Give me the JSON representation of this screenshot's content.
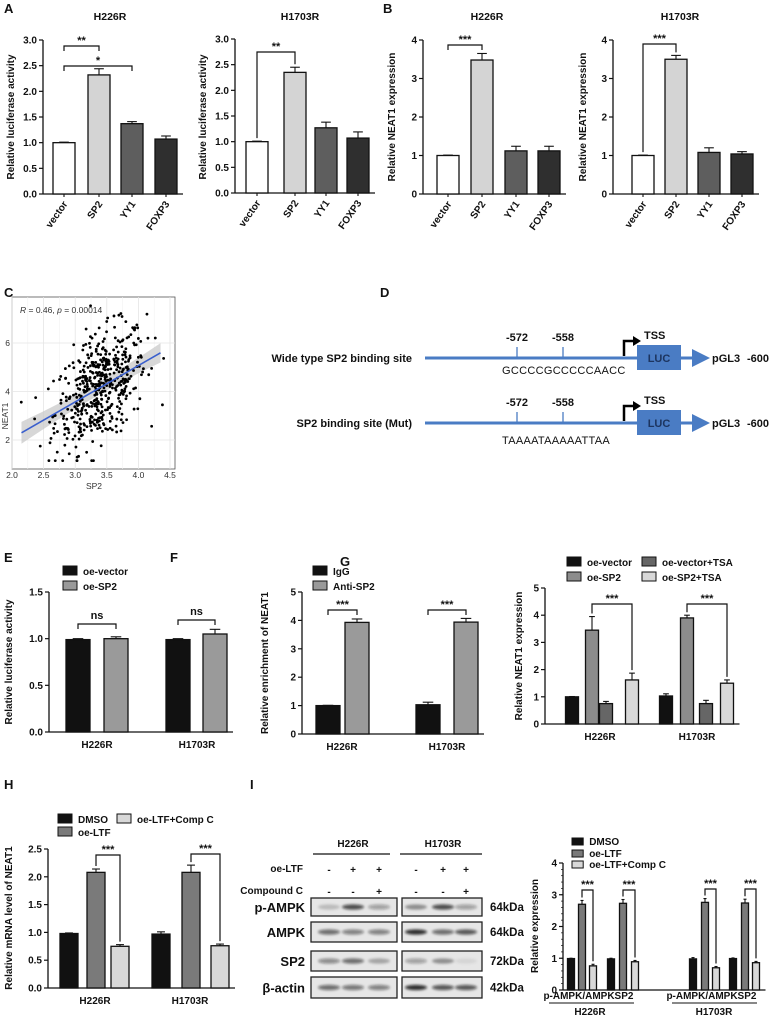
{
  "panels": [
    "A",
    "B",
    "C",
    "D",
    "E",
    "F",
    "G",
    "H",
    "I"
  ],
  "chart_data": [
    {
      "id": "A1",
      "type": "bar",
      "title": "H226R",
      "ylabel": "Relative luciferase activity",
      "xlabel": "",
      "categories": [
        "vector",
        "SP2",
        "YY1",
        "FOXP3"
      ],
      "ylim": [
        0,
        3
      ],
      "yticks": [
        0,
        0.5,
        1,
        1.5,
        2,
        2.5,
        3
      ],
      "ytick_labels": [
        "0.0",
        "0.5",
        "1.0",
        "1.5",
        "2.0",
        "2.5",
        "3.0"
      ],
      "series": [
        {
          "name": "",
          "values": [
            1.0,
            2.32,
            1.37,
            1.07
          ],
          "errors": [
            0.01,
            0.12,
            0.04,
            0.06
          ],
          "colors": [
            "#ffffff",
            "#d4d4d4",
            "#5e5e5e",
            "#2f2f2f"
          ]
        }
      ],
      "annotations": [
        {
          "a": [
            0,
            0
          ],
          "b": [
            0,
            1
          ],
          "label": "**"
        },
        {
          "a": [
            0,
            0
          ],
          "b": [
            0,
            2
          ],
          "label": "*"
        }
      ]
    },
    {
      "id": "A2",
      "type": "bar",
      "title": "H1703R",
      "ylabel": "Relative luciferase activity",
      "xlabel": "",
      "categories": [
        "vector",
        "SP2",
        "YY1",
        "FOXP3"
      ],
      "ylim": [
        0,
        3
      ],
      "yticks": [
        0,
        0.5,
        1,
        1.5,
        2,
        2.5,
        3
      ],
      "ytick_labels": [
        "0.0",
        "0.5",
        "1.0",
        "1.5",
        "2.0",
        "2.5",
        "3.0"
      ],
      "series": [
        {
          "name": "",
          "values": [
            1.0,
            2.35,
            1.27,
            1.07
          ],
          "errors": [
            0.01,
            0.1,
            0.11,
            0.12
          ],
          "colors": [
            "#ffffff",
            "#d4d4d4",
            "#5e5e5e",
            "#2f2f2f"
          ]
        }
      ],
      "annotations": [
        {
          "a": [
            0,
            0
          ],
          "b": [
            0,
            1
          ],
          "label": "**"
        }
      ]
    },
    {
      "id": "B1",
      "type": "bar",
      "title": "H226R",
      "ylabel": "Relative NEAT1 expression",
      "xlabel": "",
      "categories": [
        "vector",
        "SP2",
        "YY1",
        "FOXP3"
      ],
      "ylim": [
        0,
        4
      ],
      "yticks": [
        0,
        1,
        2,
        3,
        4
      ],
      "ytick_labels": [
        "0",
        "1",
        "2",
        "3",
        "4"
      ],
      "series": [
        {
          "name": "",
          "values": [
            1.0,
            3.48,
            1.12,
            1.12
          ],
          "errors": [
            0.01,
            0.17,
            0.12,
            0.12
          ],
          "colors": [
            "#ffffff",
            "#d4d4d4",
            "#5e5e5e",
            "#2f2f2f"
          ]
        }
      ],
      "annotations": [
        {
          "a": [
            0,
            0
          ],
          "b": [
            0,
            1
          ],
          "label": "***"
        }
      ]
    },
    {
      "id": "B2",
      "type": "bar",
      "title": "H1703R",
      "ylabel": "Relative NEAT1 expression",
      "xlabel": "",
      "categories": [
        "vector",
        "SP2",
        "YY1",
        "FOXP3"
      ],
      "ylim": [
        0,
        4
      ],
      "yticks": [
        0,
        1,
        2,
        3,
        4
      ],
      "ytick_labels": [
        "0",
        "1",
        "2",
        "3",
        "4"
      ],
      "series": [
        {
          "name": "",
          "values": [
            1.0,
            3.5,
            1.08,
            1.04
          ],
          "errors": [
            0.01,
            0.1,
            0.12,
            0.06
          ],
          "colors": [
            "#ffffff",
            "#d4d4d4",
            "#5e5e5e",
            "#2f2f2f"
          ]
        }
      ],
      "annotations": [
        {
          "a": [
            0,
            0
          ],
          "b": [
            0,
            1
          ],
          "label": "***"
        }
      ]
    },
    {
      "id": "C",
      "type": "scatter",
      "title": "",
      "xlabel": "SP2",
      "ylabel": "NEAT1",
      "annotation": "R = 0.46, p = 0.00014",
      "stat_r": "R",
      "stat_r_val": " = 0.46, ",
      "stat_p": "p",
      "stat_p_val": " = 0.00014",
      "xlim": [
        2.0,
        4.5
      ],
      "ylim": [
        1.0,
        7.8
      ],
      "xticks": [
        2.0,
        2.5,
        3.0,
        3.5,
        4.0,
        4.5
      ],
      "xtick_labels": [
        "2.0",
        "2.5",
        "3.0",
        "3.5",
        "4.0",
        "4.5"
      ],
      "yticks": [
        2,
        4,
        6
      ],
      "ytick_labels": [
        "2",
        "4",
        "6"
      ],
      "n_points_approx": 500,
      "x_mean": 3.4,
      "x_sd": 0.36,
      "fit": {
        "slope": 1.5,
        "intercept": -0.93,
        "x_range": [
          2.15,
          4.35
        ]
      },
      "residual_sd": 1.1,
      "grid": true,
      "line_color": "#3a5fcd"
    },
    {
      "id": "E",
      "type": "bar",
      "title": "",
      "ylabel": "Relative luciferase activity",
      "xlabel": "",
      "categories": [
        "H226R",
        "H1703R"
      ],
      "ylim": [
        0,
        1.5
      ],
      "yticks": [
        0,
        0.5,
        1,
        1.5
      ],
      "ytick_labels": [
        "0.0",
        "0.5",
        "1.0",
        "1.5"
      ],
      "series": [
        {
          "name": "oe-vector",
          "values": [
            0.99,
            0.99
          ],
          "errors": [
            0.01,
            0.01
          ],
          "color": "#111111"
        },
        {
          "name": "oe-SP2",
          "values": [
            1.0,
            1.05
          ],
          "errors": [
            0.02,
            0.05
          ],
          "color": "#9a9a9a"
        }
      ],
      "legend": "top-left",
      "annotations": [
        {
          "a": [
            0,
            0
          ],
          "b": [
            1,
            0
          ],
          "label": "ns"
        },
        {
          "a": [
            0,
            1
          ],
          "b": [
            1,
            1
          ],
          "label": "ns"
        }
      ]
    },
    {
      "id": "F",
      "type": "bar",
      "title": "",
      "ylabel": "Relative enrichment of NEAT1",
      "xlabel": "",
      "categories": [
        "H226R",
        "H1703R"
      ],
      "ylim": [
        0,
        5
      ],
      "yticks": [
        0,
        1,
        2,
        3,
        4,
        5
      ],
      "ytick_labels": [
        "0",
        "1",
        "2",
        "3",
        "4",
        "5"
      ],
      "series": [
        {
          "name": "IgG",
          "values": [
            1.0,
            1.03
          ],
          "errors": [
            0.01,
            0.09
          ],
          "color": "#111111"
        },
        {
          "name": "Anti-SP2",
          "values": [
            3.93,
            3.94
          ],
          "errors": [
            0.12,
            0.13
          ],
          "color": "#9a9a9a"
        }
      ],
      "legend": "top-left",
      "annotations": [
        {
          "a": [
            0,
            0
          ],
          "b": [
            1,
            0
          ],
          "label": "***"
        },
        {
          "a": [
            0,
            1
          ],
          "b": [
            1,
            1
          ],
          "label": "***"
        }
      ]
    },
    {
      "id": "G",
      "type": "bar",
      "title": "",
      "ylabel": "Relative NEAT1 expression",
      "xlabel": "",
      "categories": [
        "H226R",
        "H1703R"
      ],
      "ylim": [
        0,
        5
      ],
      "yticks": [
        0,
        1,
        2,
        3,
        4,
        5
      ],
      "ytick_labels": [
        "0",
        "1",
        "2",
        "3",
        "4",
        "5"
      ],
      "series": [
        {
          "name": "oe-vector",
          "values": [
            1.0,
            1.03
          ],
          "errors": [
            0.01,
            0.08
          ],
          "color": "#111111"
        },
        {
          "name": "oe-SP2",
          "values": [
            3.45,
            3.9
          ],
          "errors": [
            0.5,
            0.1
          ],
          "color": "#8c8c8c"
        },
        {
          "name": "oe-vector+TSA",
          "values": [
            0.75,
            0.75
          ],
          "errors": [
            0.08,
            0.12
          ],
          "color": "#666666"
        },
        {
          "name": "oe-SP2+TSA",
          "values": [
            1.62,
            1.5
          ],
          "errors": [
            0.25,
            0.12
          ],
          "color": "#d8d8d8"
        }
      ],
      "legend": "top",
      "annotations": [
        {
          "a": [
            1,
            0
          ],
          "b": [
            3,
            0
          ],
          "label": "***"
        },
        {
          "a": [
            1,
            1
          ],
          "b": [
            3,
            1
          ],
          "label": "***"
        }
      ]
    },
    {
      "id": "H",
      "type": "bar",
      "title": "",
      "ylabel": "Relative mRNA level of NEAT1",
      "xlabel": "",
      "categories": [
        "H226R",
        "H1703R"
      ],
      "ylim": [
        0,
        2.5
      ],
      "yticks": [
        0,
        0.5,
        1,
        1.5,
        2,
        2.5
      ],
      "ytick_labels": [
        "0.0",
        "0.5",
        "1.0",
        "1.5",
        "2.0",
        "2.5"
      ],
      "series": [
        {
          "name": "DMSO",
          "values": [
            0.98,
            0.97
          ],
          "errors": [
            0.01,
            0.04
          ],
          "color": "#111111"
        },
        {
          "name": "oe-LTF",
          "values": [
            2.08,
            2.08
          ],
          "errors": [
            0.06,
            0.13
          ],
          "color": "#7a7a7a"
        },
        {
          "name": "oe-LTF+Comp C",
          "values": [
            0.75,
            0.76
          ],
          "errors": [
            0.03,
            0.03
          ],
          "color": "#d8d8d8"
        }
      ],
      "legend": "top",
      "annotations": [
        {
          "a": [
            1,
            0
          ],
          "b": [
            2,
            0
          ],
          "label": "***"
        },
        {
          "a": [
            1,
            1
          ],
          "b": [
            2,
            1
          ],
          "label": "***"
        }
      ]
    },
    {
      "id": "I2",
      "type": "bar",
      "title": "",
      "ylabel": "Relative expression",
      "xlabel": "",
      "categories": [
        "p-AMPK/AMPK",
        "SP2",
        "p-AMPK/AMPK",
        "SP2"
      ],
      "category_groups": [
        "H226R",
        "H1703R"
      ],
      "ylim": [
        0,
        4
      ],
      "yticks": [
        0,
        1,
        2,
        3,
        4
      ],
      "ytick_labels": [
        "0",
        "1",
        "2",
        "3",
        "4"
      ],
      "series": [
        {
          "name": "DMSO",
          "values": [
            0.99,
            0.98,
            0.98,
            0.99
          ],
          "errors": [
            0.01,
            0.02,
            0.04,
            0.02
          ],
          "color": "#111111"
        },
        {
          "name": "oe-LTF",
          "values": [
            2.7,
            2.73,
            2.76,
            2.74
          ],
          "errors": [
            0.12,
            0.12,
            0.12,
            0.12
          ],
          "color": "#7a7a7a"
        },
        {
          "name": "oe-LTF+Comp C",
          "values": [
            0.76,
            0.89,
            0.7,
            0.86
          ],
          "errors": [
            0.05,
            0.04,
            0.04,
            0.04
          ],
          "color": "#d8d8d8"
        }
      ],
      "legend": "top-left",
      "annotations": [
        {
          "a": [
            1,
            0
          ],
          "b": [
            2,
            0
          ],
          "label": "***"
        },
        {
          "a": [
            1,
            1
          ],
          "b": [
            2,
            1
          ],
          "label": "***"
        },
        {
          "a": [
            1,
            2
          ],
          "b": [
            2,
            2
          ],
          "label": "***"
        },
        {
          "a": [
            1,
            3
          ],
          "b": [
            2,
            3
          ],
          "label": "***"
        }
      ]
    }
  ],
  "diagram": {
    "rows": [
      {
        "label": "Wide type SP2 binding site",
        "sequence": "GCCCCGCCCCCAACC"
      },
      {
        "label": "SP2 binding site (Mut)",
        "sequence": "TAAAATAAAAATTAA"
      }
    ],
    "pos1": "-572",
    "pos2": "-558",
    "tss": "TSS",
    "box": "LUC",
    "vector": "pGL3",
    "vector_pos": "-600",
    "color": "#4a7cc4"
  },
  "blot": {
    "groups": [
      "H226R",
      "H1703R"
    ],
    "treatments": [
      {
        "label": "oe-LTF",
        "signs": [
          "-",
          "+",
          "+",
          "-",
          "+",
          "+"
        ]
      },
      {
        "label": "Compound C",
        "signs": [
          "-",
          "-",
          "+",
          "-",
          "-",
          "+"
        ]
      }
    ],
    "rows": [
      {
        "label": "p-AMPK",
        "kda": "64kDa",
        "intensity": [
          0.2,
          0.75,
          0.35,
          0.4,
          0.75,
          0.35
        ]
      },
      {
        "label": "AMPK",
        "kda": "64kDa",
        "intensity": [
          0.6,
          0.5,
          0.5,
          0.9,
          0.6,
          0.7
        ]
      },
      {
        "label": "SP2",
        "kda": "72kDa",
        "intensity": [
          0.45,
          0.6,
          0.3,
          0.35,
          0.4,
          0.08
        ]
      },
      {
        "label": "β-actin",
        "kda": "42kDa",
        "intensity": [
          0.6,
          0.55,
          0.5,
          0.9,
          0.7,
          0.7
        ]
      }
    ]
  }
}
